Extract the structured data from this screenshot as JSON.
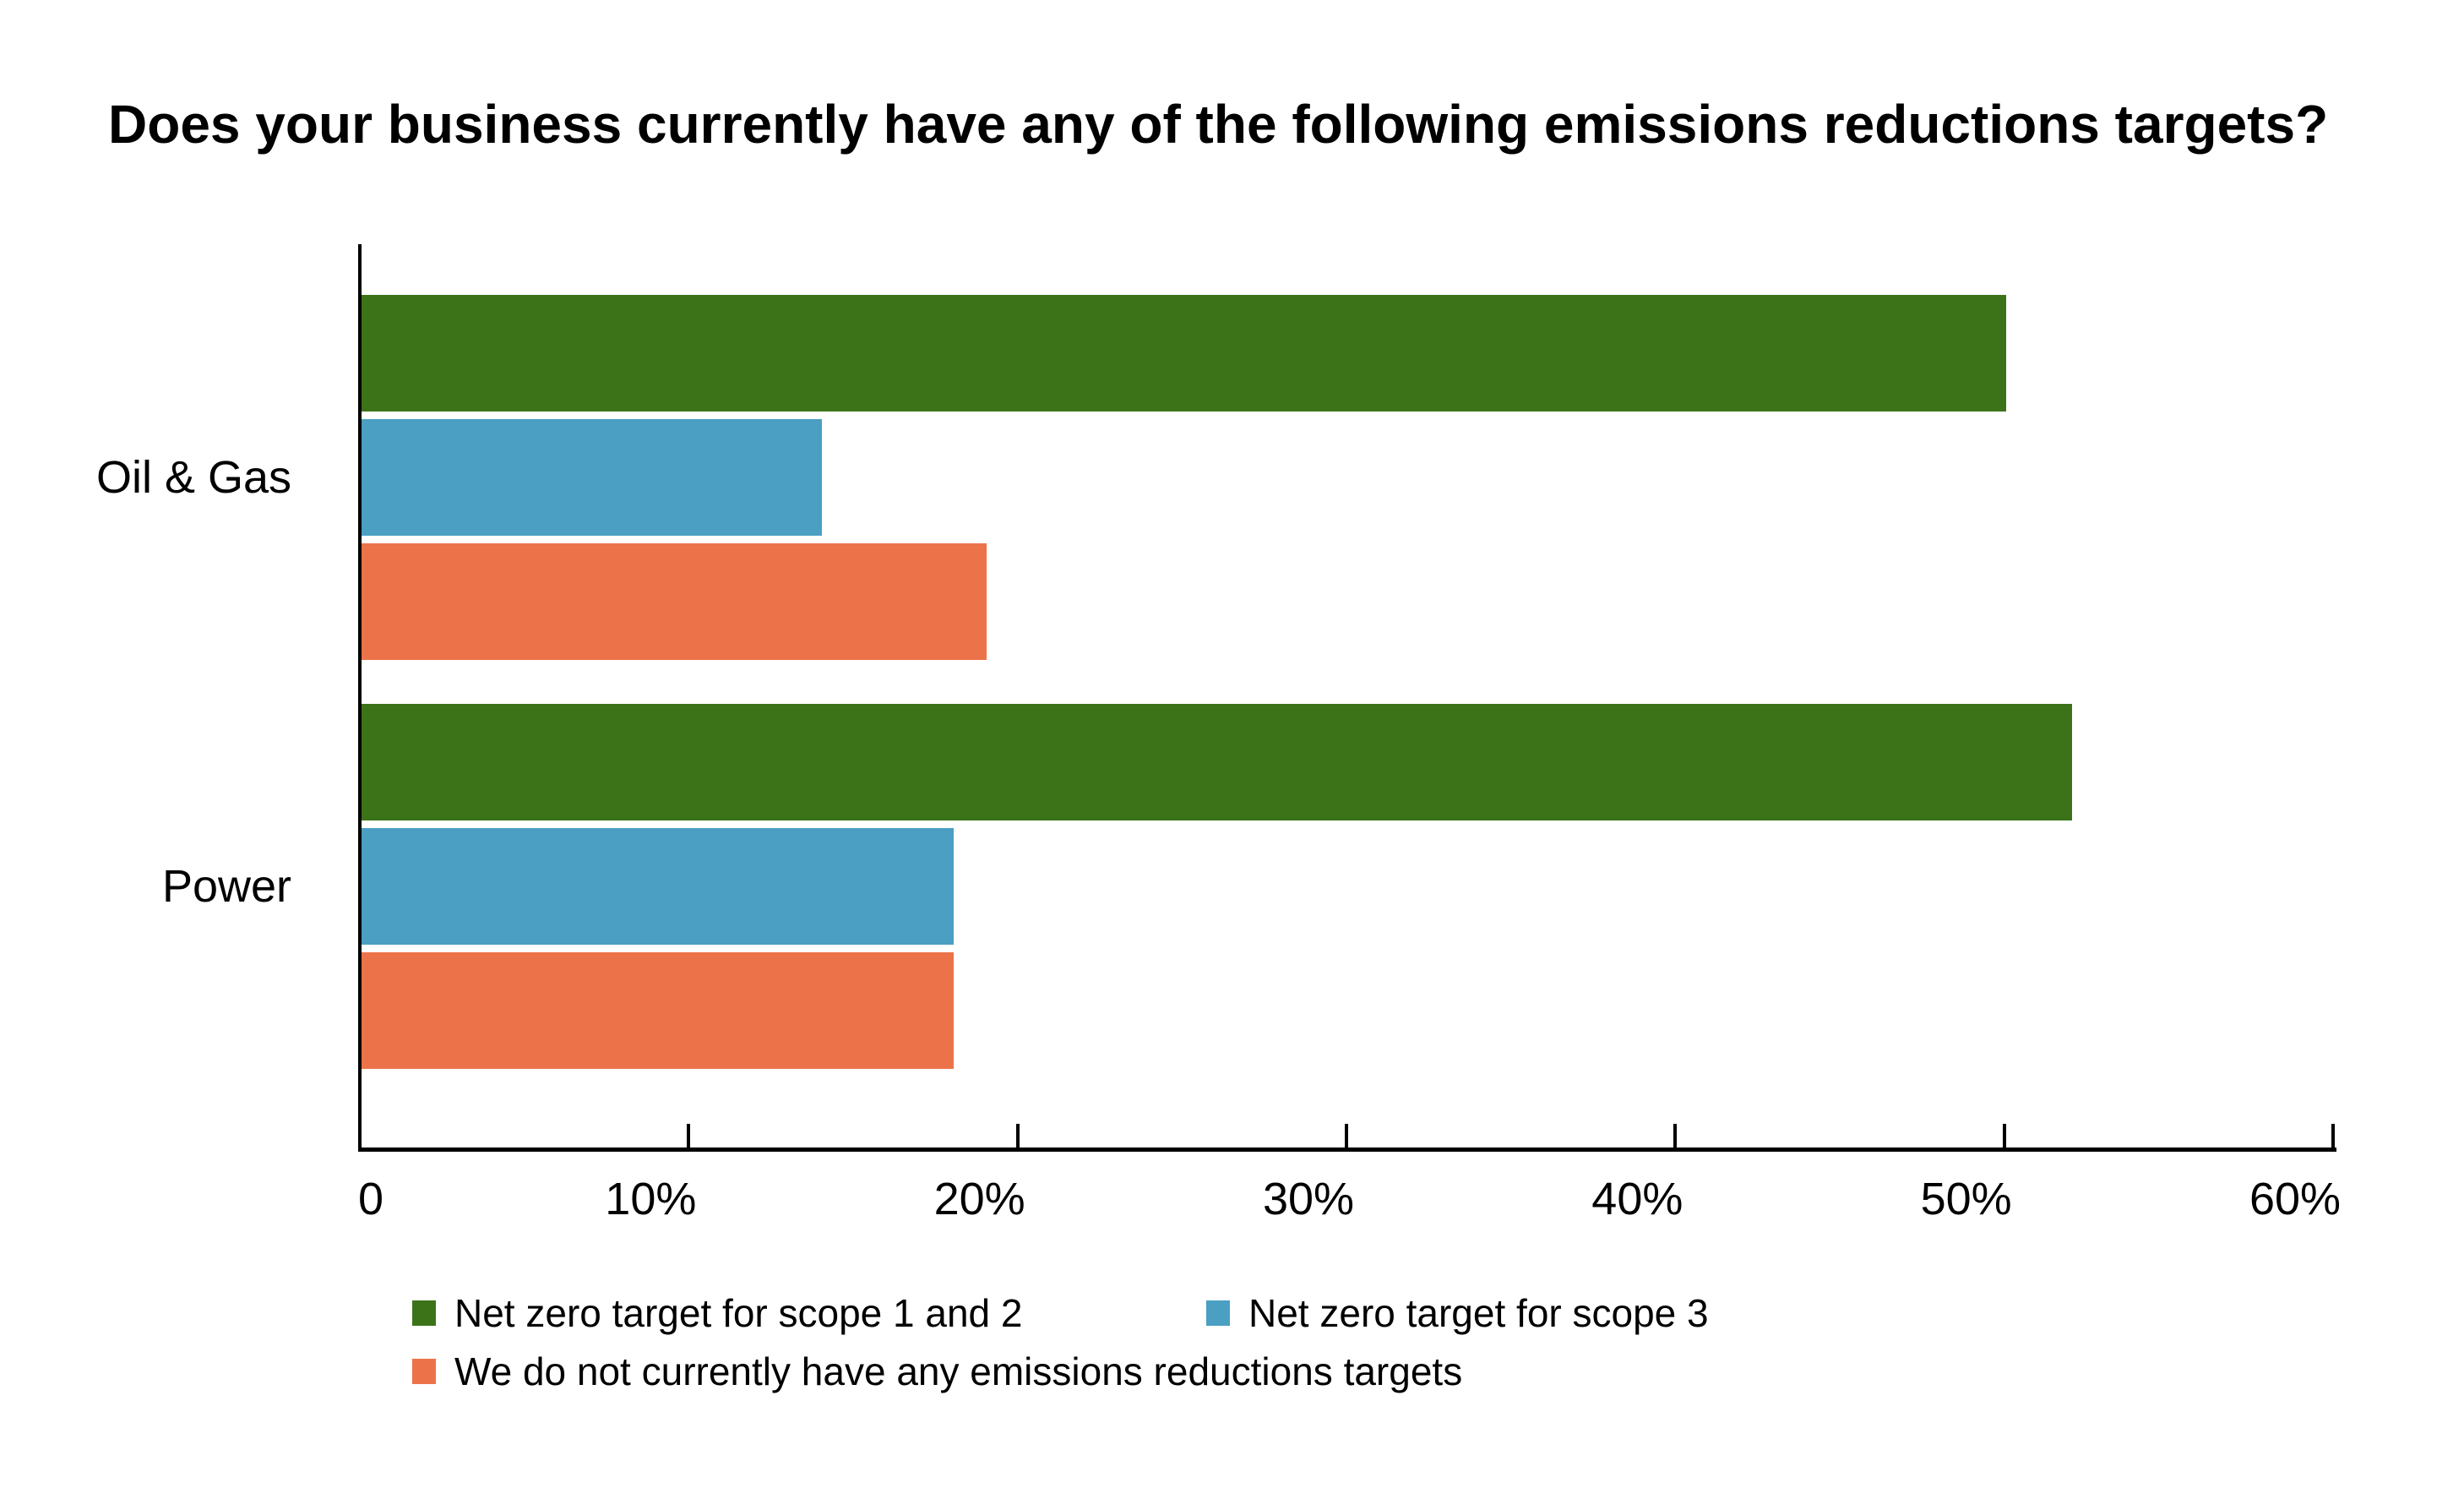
{
  "title": "Does your business currently have any of the following emissions reductions targets?",
  "colors": {
    "background": "#ffffff",
    "axis": "#000000",
    "text": "#000000",
    "series_green": "#3C7319",
    "series_blue": "#4A9FC2",
    "series_orange": "#EC7349"
  },
  "chart_data": {
    "type": "bar",
    "orientation": "horizontal",
    "title": "Does your business currently have any of the following emissions reductions targets?",
    "categories": [
      "Oil & Gas",
      "Power"
    ],
    "series": [
      {
        "name": "Net zero target for scope 1 and 2",
        "color": "#3C7319",
        "values": [
          50,
          52
        ]
      },
      {
        "name": "Net zero target for scope 3",
        "color": "#4A9FC2",
        "values": [
          14,
          18
        ]
      },
      {
        "name": "We do not currently have any emissions reductions targets",
        "color": "#EC7349",
        "values": [
          19,
          18
        ]
      }
    ],
    "value_unit": "%",
    "xlabel": "",
    "ylabel": "",
    "xlim": [
      0,
      60
    ],
    "x_ticks": [
      {
        "value": 0,
        "label": "0"
      },
      {
        "value": 10,
        "label": "10%"
      },
      {
        "value": 20,
        "label": "20%"
      },
      {
        "value": 30,
        "label": "30%"
      },
      {
        "value": 40,
        "label": "40%"
      },
      {
        "value": 50,
        "label": "50%"
      },
      {
        "value": 60,
        "label": "60%"
      }
    ],
    "grid": false,
    "legend_position": "bottom"
  }
}
